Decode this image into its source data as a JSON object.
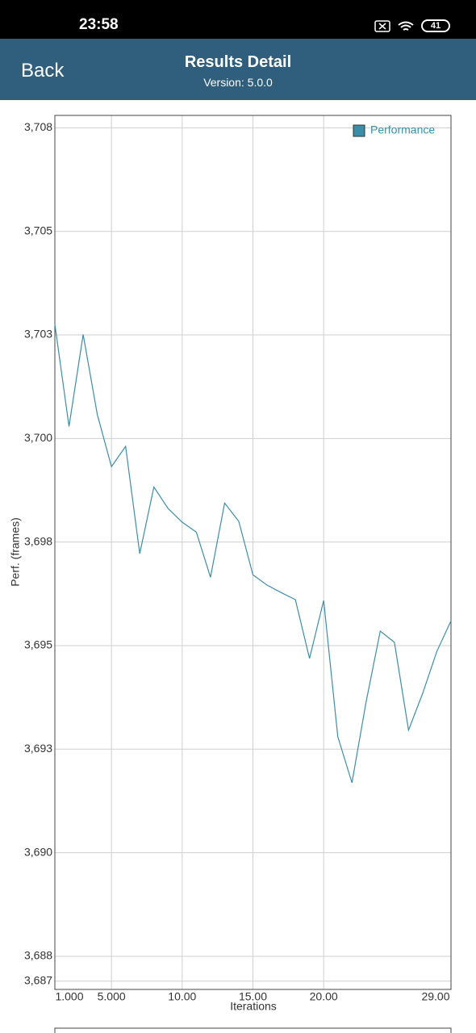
{
  "status_bar": {
    "time": "23:58",
    "battery": "41"
  },
  "header": {
    "back": "Back",
    "title": "Results Detail",
    "subtitle": "Version: 5.0.0"
  },
  "chart_data": {
    "type": "line",
    "x_label": "Iterations",
    "y_label": "Perf. (frames)",
    "x": [
      1,
      2,
      3,
      4,
      5,
      6,
      7,
      8,
      9,
      10,
      11,
      12,
      13,
      14,
      15,
      16,
      17,
      18,
      19,
      20,
      21,
      22,
      23,
      24,
      25,
      26,
      27,
      28,
      29
    ],
    "series": [
      {
        "name": "Performance",
        "color": "#3a8fa8",
        "values": [
          3702.76,
          3700.29,
          3702.51,
          3700.58,
          3699.32,
          3699.81,
          3697.22,
          3698.83,
          3698.31,
          3697.98,
          3697.74,
          3696.65,
          3698.44,
          3698.0,
          3696.71,
          3696.46,
          3696.28,
          3696.11,
          3694.69,
          3696.09,
          3692.8,
          3691.69,
          3693.64,
          3695.35,
          3695.08,
          3692.96,
          3693.85,
          3694.86,
          3695.6
        ]
      }
    ],
    "xlim": [
      1,
      29
    ],
    "ylim": [
      3686.7,
      3707.8
    ],
    "xticks": [
      {
        "value": 1,
        "label": "1.000"
      },
      {
        "value": 5,
        "label": "5.000"
      },
      {
        "value": 10,
        "label": "10.00"
      },
      {
        "value": 15,
        "label": "15.00"
      },
      {
        "value": 20,
        "label": "20.00"
      },
      {
        "value": 29,
        "label": "29.00"
      }
    ],
    "yticks": [
      {
        "value": 3707.5,
        "label": "3,708"
      },
      {
        "value": 3705,
        "label": "3,705"
      },
      {
        "value": 3702.5,
        "label": "3,703"
      },
      {
        "value": 3700,
        "label": "3,700"
      },
      {
        "value": 3697.5,
        "label": "3,698"
      },
      {
        "value": 3695,
        "label": "3,695"
      },
      {
        "value": 3692.5,
        "label": "3,693"
      },
      {
        "value": 3690,
        "label": "3,690"
      },
      {
        "value": 3687.5,
        "label": "3,688"
      },
      {
        "value": 3686.9,
        "label": "3,687"
      }
    ],
    "grid": true,
    "legend": "top-right"
  }
}
